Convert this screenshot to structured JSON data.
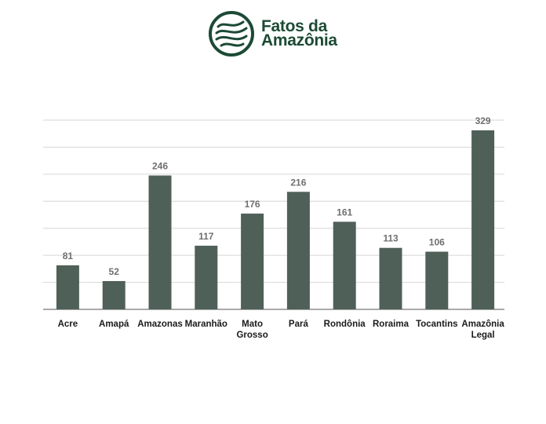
{
  "brand": {
    "line1": "Fatos da",
    "line2": "Amazônia",
    "color": "#1c4a35",
    "icon": "amazon-river-logo-icon"
  },
  "chart_data": {
    "type": "bar",
    "categories": [
      [
        "Acre"
      ],
      [
        "Amapá"
      ],
      [
        "Amazonas"
      ],
      [
        "Maranhão"
      ],
      [
        "Mato",
        "Grosso"
      ],
      [
        "Pará"
      ],
      [
        "Rondônia"
      ],
      [
        "Roraima"
      ],
      [
        "Tocantins"
      ],
      [
        "Amazônia",
        "Legal"
      ]
    ],
    "values": [
      81,
      52,
      246,
      117,
      176,
      216,
      161,
      113,
      106,
      329
    ],
    "ylim": [
      0,
      350
    ],
    "grid": true,
    "bar_color": "#4f6058",
    "title": "",
    "xlabel": "",
    "ylabel": ""
  }
}
